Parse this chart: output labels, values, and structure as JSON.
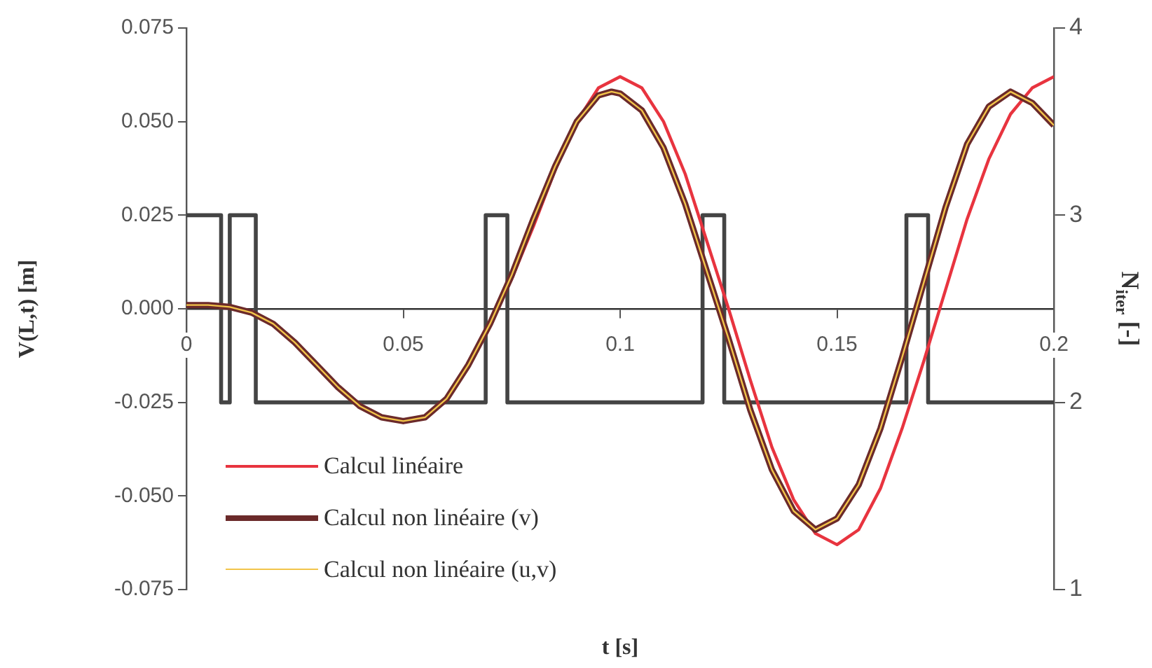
{
  "chart_data": {
    "type": "line",
    "xlabel": "t [s]",
    "ylabel": "V(L,t) [m]",
    "y2label": "N$_{iter}$ [-]",
    "xlim": [
      0,
      0.2
    ],
    "xticks": [
      0,
      0.05,
      0.1,
      0.15,
      0.2
    ],
    "ylim": [
      -0.075,
      0.075
    ],
    "yticks": [
      {
        "value": -0.075,
        "label": "-0.075"
      },
      {
        "value": -0.05,
        "label": "-0.050"
      },
      {
        "value": -0.025,
        "label": "-0.025"
      },
      {
        "value": 0,
        "label": "0.000"
      },
      {
        "value": 0.025,
        "label": "0.025"
      },
      {
        "value": 0.05,
        "label": "0.050"
      },
      {
        "value": 0.075,
        "label": "0.075"
      }
    ],
    "y2lim": [
      1,
      4
    ],
    "y2ticks": [
      1,
      2,
      3,
      4
    ],
    "grid": false,
    "legend": "bottom left",
    "marker": "none",
    "line_style": "solid",
    "series": [
      {
        "name": "Calcul linéaire",
        "color": "#e8343f",
        "x": [
          0.07,
          0.075,
          0.08,
          0.085,
          0.09,
          0.095,
          0.1,
          0.105,
          0.11,
          0.115,
          0.12,
          0.125,
          0.13,
          0.135,
          0.14,
          0.145,
          0.15,
          0.155,
          0.16,
          0.165,
          0.17,
          0.175,
          0.18,
          0.185,
          0.19,
          0.195,
          0.2
        ],
        "values": [
          -0.004,
          0.008,
          0.022,
          0.037,
          0.05,
          0.059,
          0.062,
          0.059,
          0.05,
          0.036,
          0.018,
          0.0,
          -0.019,
          -0.037,
          -0.051,
          -0.06,
          -0.063,
          -0.059,
          -0.048,
          -0.032,
          -0.014,
          0.005,
          0.024,
          0.04,
          0.052,
          0.059,
          0.062
        ]
      },
      {
        "name": "Calcul non linéaire (v)",
        "color": "#6b2a2a",
        "x": [
          0,
          0.005,
          0.01,
          0.015,
          0.02,
          0.025,
          0.03,
          0.035,
          0.04,
          0.045,
          0.05,
          0.055,
          0.06,
          0.065,
          0.07,
          0.075,
          0.08,
          0.085,
          0.09,
          0.095,
          0.098,
          0.1,
          0.105,
          0.11,
          0.115,
          0.12,
          0.125,
          0.13,
          0.135,
          0.14,
          0.145,
          0.15,
          0.155,
          0.16,
          0.165,
          0.17,
          0.175,
          0.18,
          0.185,
          0.19,
          0.195,
          0.2
        ],
        "values": [
          0.001,
          0.001,
          0.0005,
          -0.001,
          -0.004,
          -0.009,
          -0.015,
          -0.021,
          -0.026,
          -0.029,
          -0.03,
          -0.029,
          -0.024,
          -0.015,
          -0.004,
          0.009,
          0.024,
          0.038,
          0.05,
          0.057,
          0.058,
          0.0575,
          0.053,
          0.043,
          0.028,
          0.01,
          -0.008,
          -0.027,
          -0.043,
          -0.054,
          -0.059,
          -0.056,
          -0.047,
          -0.032,
          -0.013,
          0.007,
          0.027,
          0.044,
          0.054,
          0.058,
          0.055,
          0.049
        ]
      },
      {
        "name": "Calcul non linéaire (u,v)",
        "color": "#f2c44a",
        "x": [
          0,
          0.005,
          0.01,
          0.015,
          0.02,
          0.025,
          0.03,
          0.035,
          0.04,
          0.045,
          0.05,
          0.055,
          0.06,
          0.065,
          0.07,
          0.075,
          0.08,
          0.085,
          0.09,
          0.095,
          0.098,
          0.1,
          0.105,
          0.11,
          0.115,
          0.12,
          0.125,
          0.13,
          0.135,
          0.14,
          0.145,
          0.15,
          0.155,
          0.16,
          0.165,
          0.17,
          0.175,
          0.18,
          0.185,
          0.19,
          0.195,
          0.2
        ],
        "values": [
          0.001,
          0.001,
          0.0005,
          -0.001,
          -0.004,
          -0.009,
          -0.015,
          -0.021,
          -0.026,
          -0.029,
          -0.03,
          -0.029,
          -0.024,
          -0.015,
          -0.004,
          0.009,
          0.024,
          0.038,
          0.05,
          0.057,
          0.058,
          0.0575,
          0.053,
          0.043,
          0.028,
          0.01,
          -0.008,
          -0.027,
          -0.043,
          -0.054,
          -0.059,
          -0.056,
          -0.047,
          -0.032,
          -0.013,
          0.007,
          0.027,
          0.044,
          0.054,
          0.058,
          0.055,
          0.049
        ]
      },
      {
        "type": "step",
        "axis": "y2",
        "color": "#444444",
        "x": [
          0,
          0.008,
          0.01,
          0.016,
          0.069,
          0.074,
          0.119,
          0.124,
          0.166,
          0.171,
          0.2
        ],
        "values": [
          3,
          2,
          3,
          2,
          3,
          2,
          3,
          2,
          3,
          2,
          2
        ]
      }
    ]
  }
}
